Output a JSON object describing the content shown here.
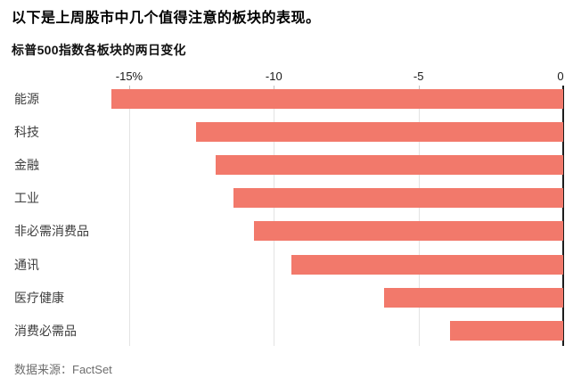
{
  "header": {
    "title": "以下是上周股市中几个值得注意的板块的表现。"
  },
  "chart": {
    "title": "标普500指数各板块的两日变化",
    "source": "数据来源：FactSet"
  },
  "chart_data": {
    "type": "bar",
    "orientation": "horizontal",
    "title": "标普500指数各板块的两日变化",
    "categories": [
      "能源",
      "科技",
      "金融",
      "工业",
      "非必需消费品",
      "通讯",
      "医疗健康",
      "消费必需品"
    ],
    "values": [
      -15.6,
      -12.7,
      -12.0,
      -11.4,
      -10.7,
      -9.4,
      -6.2,
      -3.9
    ],
    "unit": "%",
    "xlabel": "",
    "ylabel": "",
    "xlim": [
      -16.2,
      0
    ],
    "x_ticks": [
      {
        "value": -15,
        "label": "-15%"
      },
      {
        "value": -10,
        "label": "-10"
      },
      {
        "value": -5,
        "label": "-5"
      },
      {
        "value": 0,
        "label": "0"
      }
    ],
    "grid": true,
    "legend": false,
    "bar_color": "#f2796b",
    "gridline_color": "#e3e3e3",
    "zero_axis_color": "#1c1c1c",
    "source": "数据来源：FactSet"
  }
}
